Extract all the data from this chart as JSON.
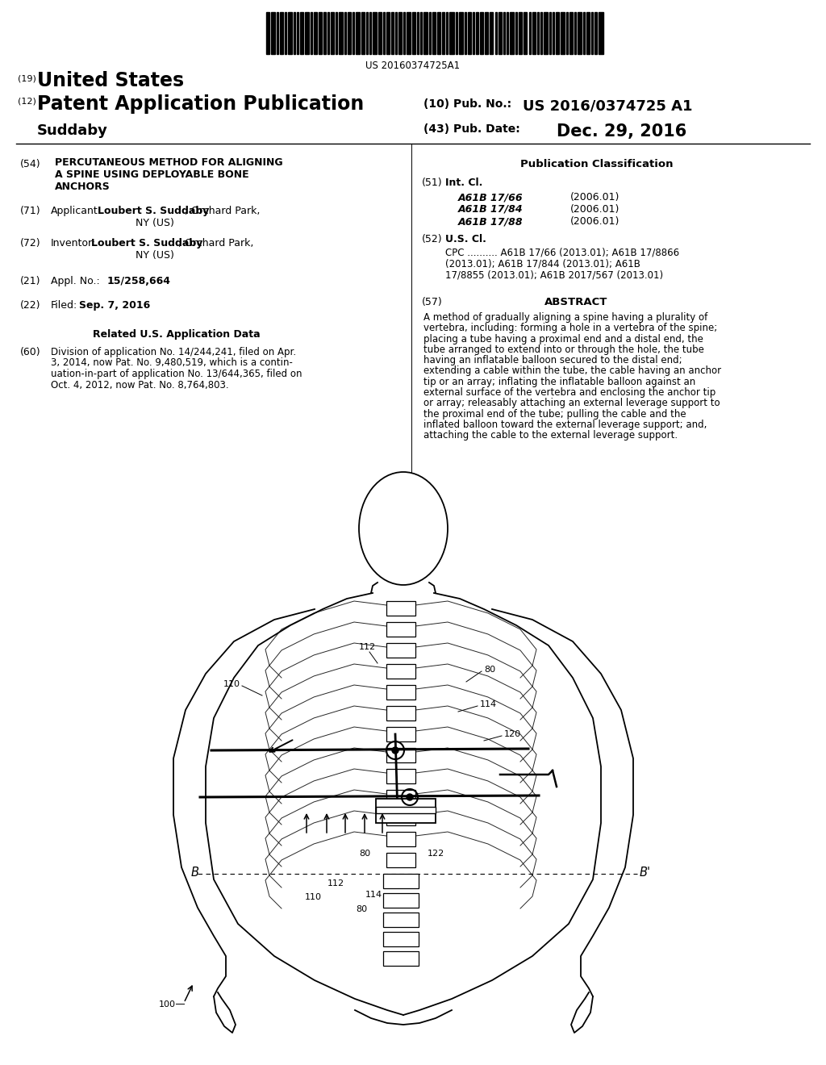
{
  "bg_color": "#ffffff",
  "barcode_text": "US 20160374725A1",
  "header_19": "(19)",
  "header_19_text": "United States",
  "header_12": "(12)",
  "header_12_text": "Patent Application Publication",
  "header_10": "(10) Pub. No.:",
  "header_10_val": "US 2016/0374725 A1",
  "header_suddaby": "Suddaby",
  "header_43": "(43) Pub. Date:",
  "header_43_val": "Dec. 29, 2016",
  "section54_num": "(54)",
  "section54_title": "PERCUTANEOUS METHOD FOR ALIGNING\nA SPINE USING DEPLOYABLE BONE\nANCHORS",
  "section71_num": "(71)",
  "section71_label": "Applicant:",
  "section71_bold": "Loubert S. Suddaby",
  "section71_rest": ", Orchard Park,\nNY (US)",
  "section72_num": "(72)",
  "section72_label": "Inventor:",
  "section72_bold": "Loubert S. Suddaby",
  "section72_rest": ", Orchard Park,\nNY (US)",
  "section21_num": "(21)",
  "section21_label": "Appl. No.:",
  "section21_val": "15/258,664",
  "section22_num": "(22)",
  "section22_label": "Filed:",
  "section22_val": "Sep. 7, 2016",
  "related_title": "Related U.S. Application Data",
  "section60_num": "(60)",
  "section60_text": "Division of application No. 14/244,241, filed on Apr.\n3, 2014, now Pat. No. 9,480,519, which is a contin-\nuation-in-part of application No. 13/644,365, filed on\nOct. 4, 2012, now Pat. No. 8,764,803.",
  "right_pub_class_title": "Publication Classification",
  "section51_num": "(51)",
  "section51_label": "Int. Cl.",
  "section51_entries": [
    [
      "A61B 17/66",
      "(2006.01)"
    ],
    [
      "A61B 17/84",
      "(2006.01)"
    ],
    [
      "A61B 17/88",
      "(2006.01)"
    ]
  ],
  "section52_num": "(52)",
  "section52_label": "U.S. Cl.",
  "section52_cpc_plain": "CPC ..........",
  "section52_cpc_bold1": " A61B 17/66",
  "section52_cpc_rest1": " (2013.01); ",
  "section52_cpc_bold2": "A61B 17/8866",
  "section52_cpc_rest2": "\n(2013.01); ",
  "section52_cpc_bold3": "A61B 17/844",
  "section52_cpc_rest3": " (2013.01); ",
  "section52_cpc_bold4": "A61B",
  "section52_cpc_rest4": "\n17/8855 (2013.01); ",
  "section52_cpc_bold5": "A61B 2017/567",
  "section52_cpc_rest5": " (2013.01)",
  "section57_num": "(57)",
  "section57_title": "ABSTRACT",
  "section57_text": "A method of gradually aligning a spine having a plurality of\nvertebra, including: forming a hole in a vertebra of the spine;\nplacing a tube having a proximal end and a distal end, the\ntube arranged to extend into or through the hole, the tube\nhaving an inflatable balloon secured to the distal end;\nextending a cable within the tube, the cable having an anchor\ntip or an array; inflating the inflatable balloon against an\nexternal surface of the vertebra and enclosing the anchor tip\nor array; releasably attaching an external leverage support to\nthe proximal end of the tube; pulling the cable and the\ninflated balloon toward the external leverage support; and,\nattaching the cable to the external leverage support."
}
